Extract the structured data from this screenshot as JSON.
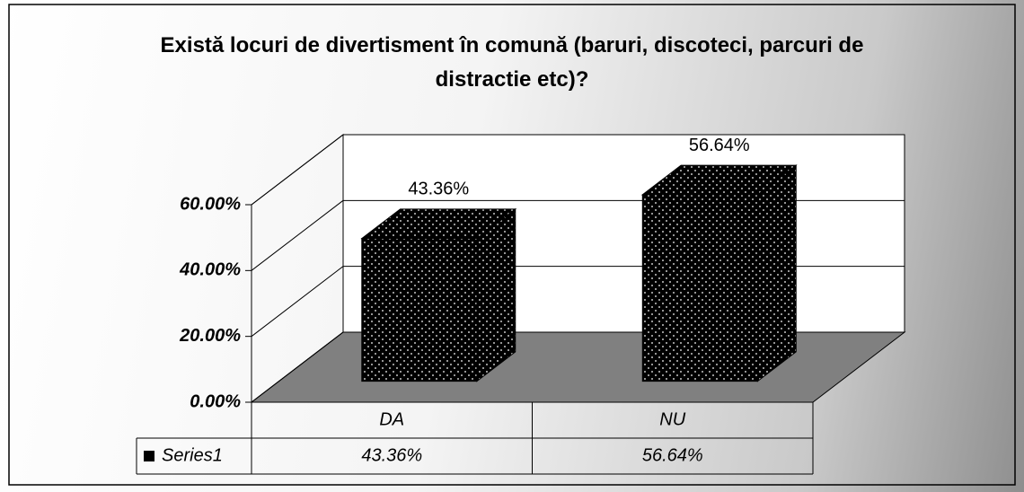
{
  "chart_data": {
    "type": "bar3d",
    "title": "Există locuri de divertisment în comună (baruri, discoteci, parcuri de distractie etc)?",
    "categories": [
      "DA",
      "NU"
    ],
    "series": [
      {
        "name": "Series1",
        "color": "#000000",
        "values": [
          43.36,
          56.64
        ],
        "value_labels": [
          "43.36%",
          "56.64%"
        ]
      }
    ],
    "ylim": [
      0,
      60
    ],
    "yticks": [
      {
        "value": 0,
        "label": "0.00%"
      },
      {
        "value": 20,
        "label": "20.00%"
      },
      {
        "value": 40,
        "label": "40.00%"
      },
      {
        "value": 60,
        "label": "60.00%"
      }
    ],
    "grid": true,
    "data_table": true
  }
}
